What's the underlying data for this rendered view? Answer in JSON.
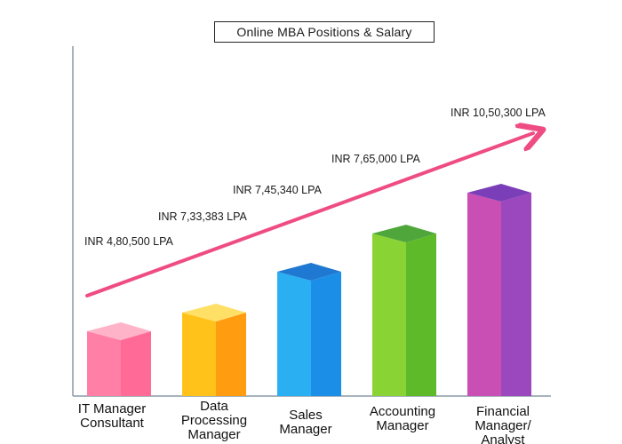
{
  "chart_data": {
    "type": "bar",
    "title": "Online MBA Positions & Salary",
    "categories": [
      "IT Manager\nConsultant",
      "Data\nProcessing\nManager",
      "Sales\nManager",
      "Accounting\nManager",
      "Financial\nManager/\nAnalyst"
    ],
    "values": [
      480500,
      733383,
      745340,
      765000,
      1050300
    ],
    "value_labels": [
      "INR 4,80,500 LPA",
      "INR 7,33,383 LPA",
      "INR 7,45,340 LPA",
      "INR 7,65,000 LPA",
      "INR 10,50,300 LPA"
    ],
    "xlabel": "",
    "ylabel": "",
    "grid": false,
    "legend": "none",
    "bar_colors": [
      {
        "front": "#ff7fa6",
        "side": "#ff6a96",
        "top": "#ffb3c8"
      },
      {
        "front": "#ffc21a",
        "side": "#ff9c0f",
        "top": "#ffe066"
      },
      {
        "front": "#2ab0f2",
        "side": "#1b8fe8",
        "top": "#1f78d1"
      },
      {
        "front": "#8ad334",
        "side": "#5fba2a",
        "top": "#4fa63a"
      },
      {
        "front": "#c94fb4",
        "side": "#9b47bd",
        "top": "#7a3fb8"
      }
    ],
    "trend_arrow_color": "#ee4c83",
    "axis_color": "#8a9aa8"
  }
}
